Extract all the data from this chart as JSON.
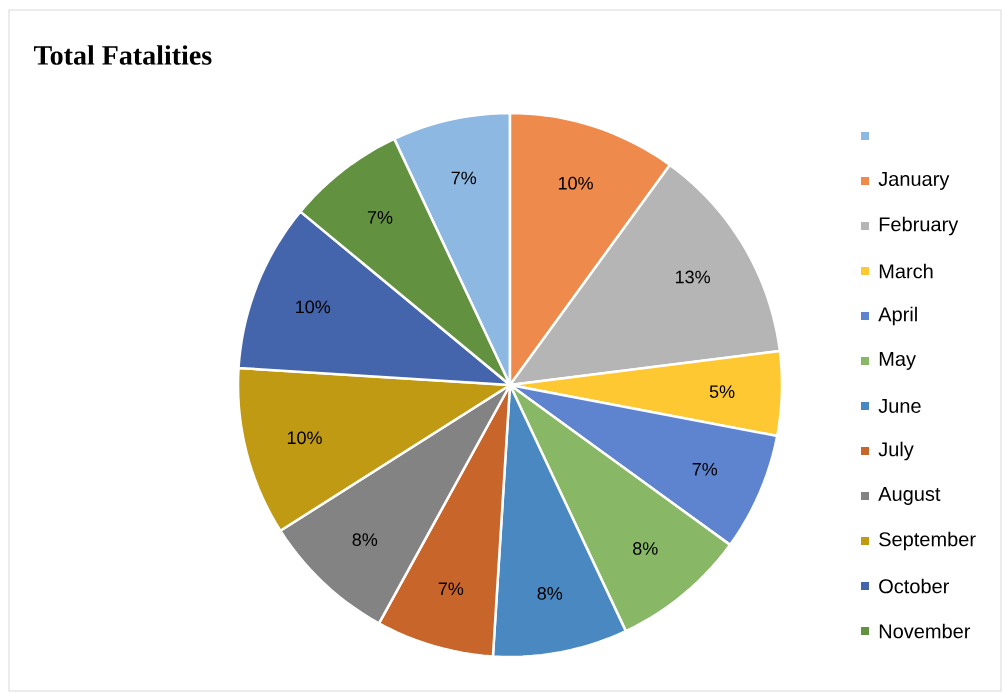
{
  "chart_data": {
    "type": "pie",
    "title": "Total Fatalities",
    "categories": [
      null,
      "January",
      "February",
      "March",
      "April",
      "May",
      "June",
      "July",
      "August",
      "September",
      "October",
      "November"
    ],
    "values": [
      7,
      10,
      13,
      5,
      7,
      8,
      8,
      7,
      8,
      10,
      10,
      7
    ],
    "value_labels": [
      "7%",
      "10%",
      "13%",
      "5%",
      "7%",
      "8%",
      "8%",
      "7%",
      "8%",
      "10%",
      "10%",
      "7%"
    ],
    "colors": [
      "#8db8e2",
      "#ee8a4b",
      "#b5b5b5",
      "#fec832",
      "#5f84cf",
      "#88b865",
      "#4a88c2",
      "#c8652a",
      "#838383",
      "#c19a14",
      "#4465ab",
      "#62913f"
    ],
    "legend": "right"
  }
}
